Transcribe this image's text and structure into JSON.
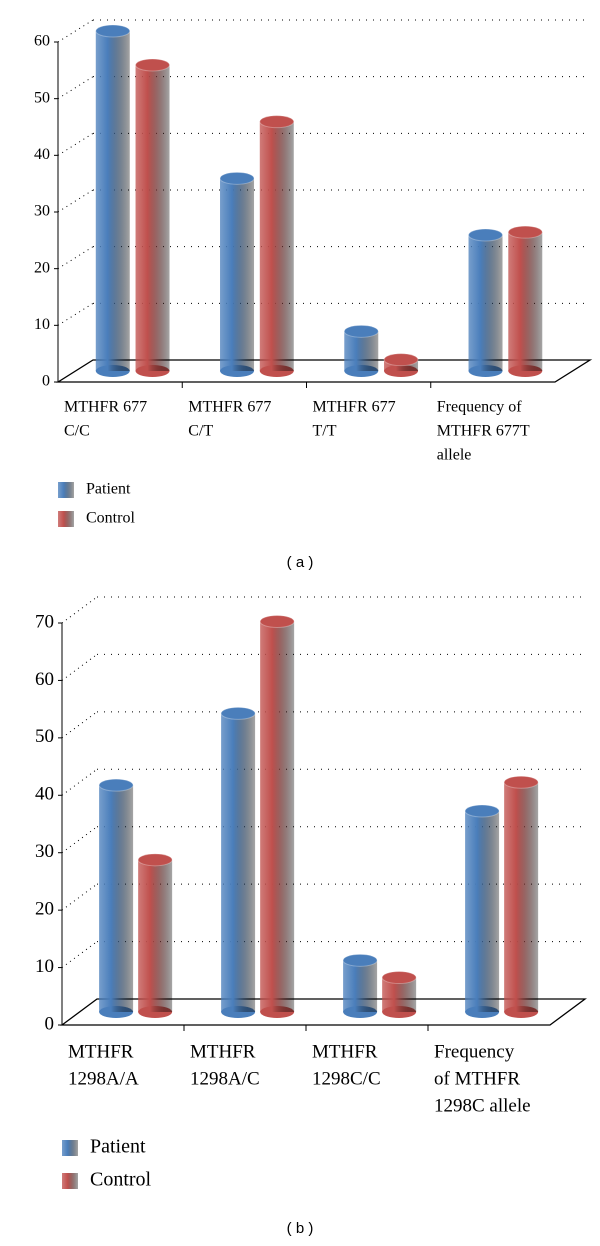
{
  "chart_data": [
    {
      "type": "bar3d",
      "caption": "( a )",
      "categories": [
        [
          "MTHFR 677",
          "C/C"
        ],
        [
          "MTHFR 677",
          "C/T"
        ],
        [
          "MTHFR 677",
          "T/T"
        ],
        [
          "Frequency of",
          "MTHFR 677T",
          "allele"
        ]
      ],
      "series": [
        {
          "name": "Patient",
          "color": "#4a7ebb",
          "values": [
            60,
            34,
            7,
            24
          ]
        },
        {
          "name": "Control",
          "color": "#c0504d",
          "values": [
            54,
            44,
            2,
            24.5
          ]
        }
      ],
      "ylim": [
        0,
        60
      ],
      "yticks": [
        0,
        10,
        20,
        30,
        40,
        50,
        60
      ],
      "grid": true
    },
    {
      "type": "bar3d",
      "caption": "( b )",
      "categories": [
        [
          "MTHFR",
          "1298A/A"
        ],
        [
          "MTHFR",
          "1298A/C"
        ],
        [
          "MTHFR",
          "1298C/C"
        ],
        [
          "Frequency",
          "of MTHFR",
          "1298C allele"
        ]
      ],
      "series": [
        {
          "name": "Patient",
          "color": "#4a7ebb",
          "values": [
            39.5,
            52,
            9,
            35
          ]
        },
        {
          "name": "Control",
          "color": "#c0504d",
          "values": [
            26.5,
            68,
            6,
            40
          ]
        }
      ],
      "ylim": [
        0,
        70
      ],
      "yticks": [
        0,
        10,
        20,
        30,
        40,
        50,
        60,
        70
      ],
      "grid": true
    }
  ]
}
